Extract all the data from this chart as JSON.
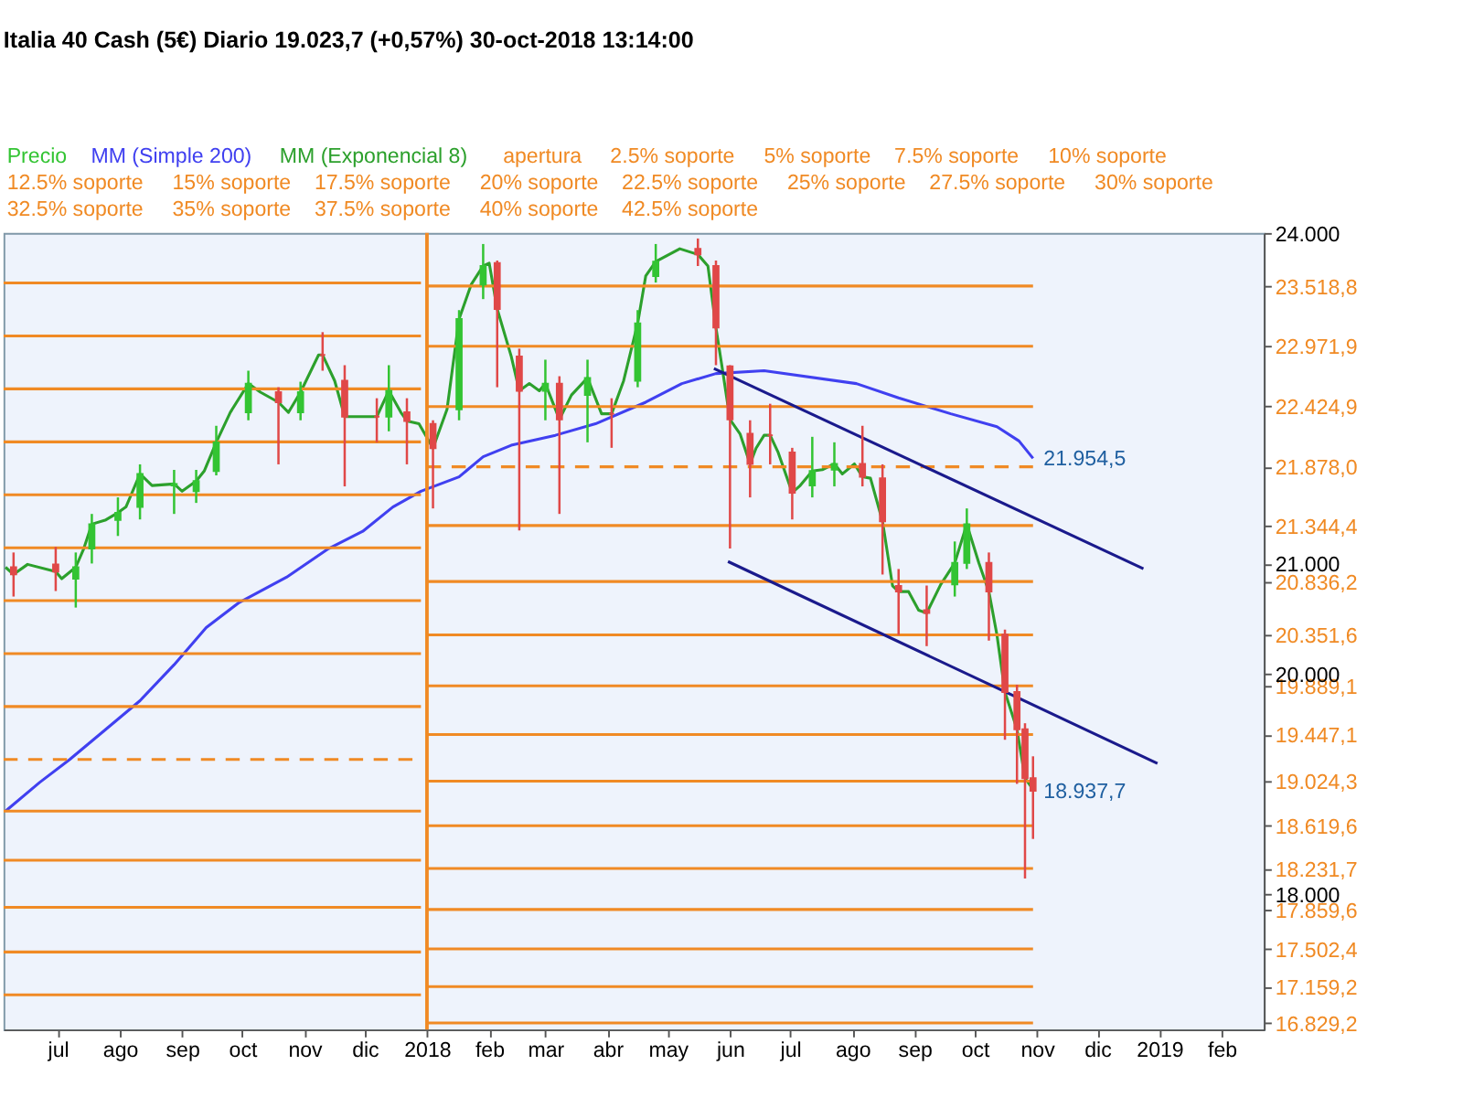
{
  "chart_data": {
    "type": "line",
    "title": "Italia 40 Cash (5€)   Diario   19.023,7 (+0,57%)   30-oct-2018 13:14:00",
    "x": [
      "2017-06-04",
      "2017-12-29",
      "2017-12-30",
      "2018-01-01",
      "2018-10-30"
    ],
    "xlim": [
      "2017-06-04",
      "2019-02-22"
    ],
    "xticks": [
      {
        "value": "2017-07-01",
        "label": "jul"
      },
      {
        "value": "2017-08-01",
        "label": "ago"
      },
      {
        "value": "2017-09-01",
        "label": "sep"
      },
      {
        "value": "2017-10-01",
        "label": "oct"
      },
      {
        "value": "2017-11-01",
        "label": "nov"
      },
      {
        "value": "2017-12-01",
        "label": "dic"
      },
      {
        "value": "2018-01-01",
        "label": "2018"
      },
      {
        "value": "2018-02-01",
        "label": "feb"
      },
      {
        "value": "2018-03-01",
        "label": "mar"
      },
      {
        "value": "2018-04-01",
        "label": "abr"
      },
      {
        "value": "2018-05-01",
        "label": "may"
      },
      {
        "value": "2018-06-01",
        "label": "jun"
      },
      {
        "value": "2018-07-01",
        "label": "jul"
      },
      {
        "value": "2018-08-01",
        "label": "ago"
      },
      {
        "value": "2018-09-01",
        "label": "sep"
      },
      {
        "value": "2018-10-01",
        "label": "oct"
      },
      {
        "value": "2018-11-01",
        "label": "nov"
      },
      {
        "value": "2018-12-01",
        "label": "dic"
      },
      {
        "value": "2019-01-01",
        "label": "2019"
      },
      {
        "value": "2019-02-01",
        "label": "feb"
      }
    ],
    "ylim": [
      16770,
      24000
    ],
    "yticks": [
      {
        "value": 24000,
        "label": "24.000"
      },
      {
        "value": 23518.8,
        "label": "23.518,8"
      },
      {
        "value": 22971.9,
        "label": "22.971,9"
      },
      {
        "value": 22424.9,
        "label": "22.424,9"
      },
      {
        "value": 21878,
        "label": "21.878,0"
      },
      {
        "value": 21344.4,
        "label": "21.344,4"
      },
      {
        "value": 21000,
        "label": "21.000"
      },
      {
        "value": 20836.2,
        "label": "20.836,2"
      },
      {
        "value": 20351.6,
        "label": "20.351,6"
      },
      {
        "value": 20000,
        "label": "20.000"
      },
      {
        "value": 19889.1,
        "label": "19.889,1"
      },
      {
        "value": 19447.1,
        "label": "19.447,1"
      },
      {
        "value": 19024.3,
        "label": "19.024,3"
      },
      {
        "value": 18619.6,
        "label": "18.619,6"
      },
      {
        "value": 18231.7,
        "label": "18.231,7"
      },
      {
        "value": 18000,
        "label": "18.000"
      },
      {
        "value": 17859.6,
        "label": "17.859,6"
      },
      {
        "value": 17502.4,
        "label": "17.502,4"
      },
      {
        "value": 17159.2,
        "label": "17.159,2"
      },
      {
        "value": 16829.2,
        "label": "16.829,2"
      }
    ],
    "legend": "top left",
    "ref_lines": [
      {
        "axis": "x",
        "value": "2018-01-01",
        "label": null,
        "color": "#f08a24"
      }
    ],
    "annotations": [
      {
        "text": "21.954,5",
        "x": "2018-10-30",
        "y": 21954.5
      },
      {
        "text": "18.937,7",
        "x": "2018-10-30",
        "y": 18937.7
      }
    ],
    "series": [
      {
        "name": "Precio",
        "type": "candlestick",
        "color": "#33c433",
        "x": [
          "2017-06-09",
          "2017-06-30",
          "2017-07-10",
          "2017-07-18",
          "2017-07-31",
          "2017-08-11",
          "2017-08-28",
          "2017-09-08",
          "2017-09-18",
          "2017-10-04",
          "2017-10-19",
          "2017-10-30",
          "2017-11-10",
          "2017-11-21",
          "2017-12-07",
          "2017-12-13",
          "2017-12-22",
          "2018-01-04",
          "2018-01-17",
          "2018-01-29",
          "2018-02-05",
          "2018-02-16",
          "2018-03-01",
          "2018-03-08",
          "2018-03-22",
          "2018-04-03",
          "2018-04-16",
          "2018-04-25",
          "2018-05-16",
          "2018-05-25",
          "2018-06-01",
          "2018-06-11",
          "2018-06-21",
          "2018-07-02",
          "2018-07-12",
          "2018-07-23",
          "2018-08-06",
          "2018-08-16",
          "2018-08-24",
          "2018-09-07",
          "2018-09-21",
          "2018-09-27",
          "2018-10-08",
          "2018-10-16",
          "2018-10-22",
          "2018-10-26",
          "2018-10-30"
        ],
        "ohlc": [
          [
            20966,
            21100,
            20700,
            20901
          ],
          [
            20992,
            21150,
            20750,
            20927
          ],
          [
            20862,
            21100,
            20600,
            20966
          ],
          [
            21136,
            21450,
            21000,
            21357
          ],
          [
            21396,
            21600,
            21250,
            21461
          ],
          [
            21513,
            21900,
            21400,
            21813
          ],
          [
            21708,
            21850,
            21450,
            21722
          ],
          [
            21656,
            21850,
            21550,
            21748
          ],
          [
            21839,
            22250,
            21800,
            22099
          ],
          [
            22372,
            22750,
            22300,
            22633
          ],
          [
            22555,
            22600,
            21900,
            22464
          ],
          [
            22372,
            22650,
            22300,
            22555
          ],
          [
            22893,
            23100,
            22750,
            22893
          ],
          [
            22659,
            22800,
            21700,
            22333
          ],
          [
            22333,
            22500,
            22100,
            22333
          ],
          [
            22333,
            22800,
            22200,
            22568
          ],
          [
            22372,
            22500,
            21900,
            22294
          ],
          [
            22268,
            22300,
            21500,
            22047
          ],
          [
            22399,
            23300,
            22300,
            23219
          ],
          [
            23531,
            23900,
            23400,
            23701
          ],
          [
            23727,
            23750,
            22600,
            23310
          ],
          [
            22880,
            22950,
            21300,
            22568
          ],
          [
            22568,
            22850,
            22300,
            22633
          ],
          [
            22633,
            22700,
            21450,
            22307
          ],
          [
            22529,
            22850,
            22100,
            22685
          ],
          [
            22359,
            22500,
            22050,
            22359
          ],
          [
            22659,
            23300,
            22600,
            23180
          ],
          [
            23609,
            23900,
            23550,
            23740
          ],
          [
            23857,
            23950,
            23700,
            23805
          ],
          [
            23701,
            23750,
            22800,
            23141
          ],
          [
            22789,
            22800,
            21136,
            22307
          ],
          [
            22177,
            22300,
            21600,
            21904
          ],
          [
            22164,
            22450,
            21900,
            22164
          ],
          [
            22008,
            22050,
            21400,
            21643
          ],
          [
            21708,
            22150,
            21600,
            21839
          ],
          [
            21852,
            22100,
            21700,
            21904
          ],
          [
            21904,
            22250,
            21700,
            21787
          ],
          [
            21774,
            21900,
            20900,
            21383
          ],
          [
            20797,
            20950,
            20350,
            20745
          ],
          [
            20576,
            20800,
            20250,
            20550
          ],
          [
            20810,
            21200,
            20700,
            21005
          ],
          [
            21005,
            21500,
            20950,
            21357
          ],
          [
            21005,
            21100,
            20300,
            20745
          ],
          [
            20354,
            20400,
            19400,
            19834
          ],
          [
            19834,
            19900,
            19000,
            19495
          ],
          [
            19495,
            19550,
            18141,
            19052
          ],
          [
            19052,
            19250,
            18500,
            18937.7
          ]
        ],
        "colors": [
          "#e04848",
          "#e04848",
          "#33c433",
          "#33c433",
          "#33c433",
          "#33c433",
          "#33c433",
          "#33c433",
          "#33c433",
          "#33c433",
          "#e04848",
          "#33c433",
          "#e04848",
          "#e04848",
          "#e04848",
          "#33c433",
          "#e04848",
          "#e04848",
          "#33c433",
          "#33c433",
          "#e04848",
          "#e04848",
          "#33c433",
          "#e04848",
          "#33c433",
          "#e04848",
          "#33c433",
          "#33c433",
          "#e04848",
          "#e04848",
          "#e04848",
          "#e04848",
          "#e04848",
          "#e04848",
          "#33c433",
          "#33c433",
          "#e04848",
          "#e04848",
          "#e04848",
          "#e04848",
          "#33c433",
          "#33c433",
          "#e04848",
          "#e04848",
          "#e04848",
          "#e04848",
          "#e04848"
        ]
      },
      {
        "name": "MM (Simple 200)",
        "color": "#4040f0",
        "x": [
          "2017-06-05",
          "2017-06-22",
          "2017-07-07",
          "2017-07-25",
          "2017-08-11",
          "2017-08-28",
          "2017-09-13",
          "2017-09-29",
          "2017-10-23",
          "2017-11-13",
          "2017-11-30",
          "2017-12-15",
          "2017-12-29",
          "2018-01-17",
          "2018-01-29",
          "2018-02-12",
          "2018-03-06",
          "2018-03-26",
          "2018-04-20",
          "2018-05-08",
          "2018-05-25",
          "2018-06-18",
          "2018-08-03",
          "2018-08-24",
          "2018-09-19",
          "2018-10-12",
          "2018-10-23",
          "2018-10-30"
        ],
        "values": [
          18753,
          19013,
          19222,
          19495,
          19755,
          20081,
          20419,
          20641,
          20875,
          21136,
          21292,
          21513,
          21656,
          21787,
          21969,
          22073,
          22164,
          22268,
          22464,
          22633,
          22724,
          22750,
          22633,
          22503,
          22359,
          22242,
          22112,
          21954.5
        ]
      },
      {
        "name": "MM (Exponencial 8)",
        "color": "#2ca02c",
        "x": [
          "2017-06-05",
          "2017-06-09",
          "2017-06-16",
          "2017-06-30",
          "2017-07-03",
          "2017-07-10",
          "2017-07-14",
          "2017-07-18",
          "2017-07-25",
          "2017-07-31",
          "2017-08-04",
          "2017-08-11",
          "2017-08-17",
          "2017-08-28",
          "2017-09-01",
          "2017-09-08",
          "2017-09-12",
          "2017-09-18",
          "2017-09-25",
          "2017-10-04",
          "2017-10-10",
          "2017-10-19",
          "2017-10-24",
          "2017-10-30",
          "2017-11-08",
          "2017-11-10",
          "2017-11-16",
          "2017-11-21",
          "2017-12-04",
          "2017-12-07",
          "2017-12-13",
          "2017-12-19",
          "2017-12-22",
          "2017-12-28",
          "2018-01-04",
          "2018-01-11",
          "2018-01-17",
          "2018-01-23",
          "2018-01-29",
          "2018-02-01",
          "2018-02-05",
          "2018-02-12",
          "2018-02-16",
          "2018-02-21",
          "2018-02-26",
          "2018-03-01",
          "2018-03-08",
          "2018-03-14",
          "2018-03-22",
          "2018-03-29",
          "2018-04-03",
          "2018-04-09",
          "2018-04-16",
          "2018-04-20",
          "2018-04-25",
          "2018-05-07",
          "2018-05-16",
          "2018-05-21",
          "2018-05-25",
          "2018-05-28",
          "2018-06-01",
          "2018-06-06",
          "2018-06-11",
          "2018-06-14",
          "2018-06-18",
          "2018-06-21",
          "2018-06-25",
          "2018-07-02",
          "2018-07-06",
          "2018-07-12",
          "2018-07-17",
          "2018-07-23",
          "2018-07-27",
          "2018-08-02",
          "2018-08-06",
          "2018-08-10",
          "2018-08-16",
          "2018-08-21",
          "2018-08-24",
          "2018-08-29",
          "2018-09-03",
          "2018-09-07",
          "2018-09-14",
          "2018-09-21",
          "2018-09-27",
          "2018-10-03",
          "2018-10-08",
          "2018-10-12",
          "2018-10-16",
          "2018-10-22",
          "2018-10-26",
          "2018-10-30"
        ],
        "values": [
          20966,
          20901,
          20992,
          20927,
          20862,
          20966,
          21136,
          21357,
          21396,
          21461,
          21513,
          21813,
          21708,
          21722,
          21656,
          21748,
          21839,
          22099,
          22372,
          22633,
          22555,
          22464,
          22372,
          22555,
          22893,
          22893,
          22659,
          22333,
          22333,
          22333,
          22568,
          22372,
          22294,
          22268,
          22047,
          22399,
          23219,
          23531,
          23701,
          23727,
          23310,
          22880,
          22568,
          22633,
          22568,
          22633,
          22307,
          22529,
          22685,
          22359,
          22359,
          22659,
          23180,
          23609,
          23740,
          23857,
          23805,
          23701,
          23141,
          22789,
          22307,
          22177,
          21904,
          22047,
          22164,
          22164,
          22008,
          21643,
          21708,
          21839,
          21852,
          21904,
          21813,
          21904,
          21787,
          21774,
          21383,
          20797,
          20745,
          20745,
          20576,
          20550,
          20810,
          21005,
          21357,
          21005,
          20745,
          20354,
          19834,
          19495,
          19052,
          18948
        ]
      },
      {
        "name": "apertura",
        "color": "#f08a24",
        "line_style": "dashed",
        "values": [
          19221,
          19221,
          null,
          21878,
          21878
        ]
      },
      {
        "name": "2.5% soporte",
        "color": "#f08a24",
        "values": [
          18752,
          18752,
          null,
          21344.4,
          21344.4
        ]
      },
      {
        "name": "5% soporte",
        "color": "#f08a24",
        "values": [
          18306,
          18306,
          null,
          20836.2,
          20836.2
        ]
      },
      {
        "name": "7.5% soporte",
        "color": "#f08a24",
        "values": [
          17880,
          17880,
          null,
          20351.6,
          20351.6
        ]
      },
      {
        "name": "10% soporte",
        "color": "#f08a24",
        "values": [
          17474,
          17474,
          null,
          19889.1,
          19889.1
        ]
      },
      {
        "name": "12.5% soporte",
        "color": "#f08a24",
        "values": [
          17085,
          17085,
          null,
          19447.1,
          19447.1
        ]
      },
      {
        "name": "15% soporte",
        "color": "#f08a24",
        "values": [
          null,
          null,
          null,
          19024.3,
          19024.3
        ]
      },
      {
        "name": "17.5% soporte",
        "color": "#f08a24",
        "values": [
          null,
          null,
          null,
          18619.6,
          18619.6
        ]
      },
      {
        "name": "20% soporte",
        "color": "#f08a24",
        "values": [
          null,
          null,
          null,
          18231.7,
          18231.7
        ]
      },
      {
        "name": "22.5% soporte",
        "color": "#f08a24",
        "values": [
          null,
          null,
          null,
          17859.6,
          17859.6
        ]
      },
      {
        "name": "25% soporte",
        "color": "#f08a24",
        "values": [
          null,
          null,
          null,
          17502.4,
          17502.4
        ]
      },
      {
        "name": "27.5% soporte",
        "color": "#f08a24",
        "values": [
          null,
          null,
          null,
          17159.2,
          17159.2
        ]
      },
      {
        "name": "30% soporte",
        "color": "#f08a24",
        "values": [
          null,
          null,
          null,
          16829.2,
          16829.2
        ]
      },
      {
        "name": "32.5% soporte",
        "color": "#f08a24",
        "values": [
          null,
          null,
          null,
          null,
          null
        ]
      },
      {
        "name": "35% soporte",
        "color": "#f08a24",
        "values": [
          null,
          null,
          null,
          null,
          null
        ]
      },
      {
        "name": "37.5% soporte",
        "color": "#f08a24",
        "values": [
          null,
          null,
          null,
          null,
          null
        ]
      },
      {
        "name": "40% soporte",
        "color": "#f08a24",
        "values": [
          null,
          null,
          null,
          null,
          null
        ]
      },
      {
        "name": "42.5% soporte",
        "color": "#f08a24",
        "values": [
          null,
          null,
          null,
          null,
          null
        ]
      },
      {
        "color": "#f08a24",
        "values": [
          19702,
          19702,
          null,
          22424.9,
          22424.9
        ]
      },
      {
        "color": "#f08a24",
        "values": [
          20182,
          20182,
          null,
          22971.9,
          22971.9
        ]
      },
      {
        "color": "#f08a24",
        "values": [
          20663,
          20663,
          null,
          23518.8,
          23518.8
        ]
      },
      {
        "color": "#f08a24",
        "values": [
          21143,
          21143,
          null,
          null,
          null
        ]
      },
      {
        "color": "#f08a24",
        "values": [
          21624,
          21624,
          null,
          null,
          null
        ]
      },
      {
        "color": "#f08a24",
        "values": [
          22104,
          22104,
          null,
          null,
          null
        ]
      },
      {
        "color": "#f08a24",
        "values": [
          22585,
          22585,
          null,
          null,
          null
        ]
      },
      {
        "color": "#f08a24",
        "values": [
          23065,
          23065,
          null,
          null,
          null
        ]
      },
      {
        "color": "#f08a24",
        "values": [
          23546,
          23546,
          null,
          null,
          null
        ]
      },
      {
        "color": "#1a1a8c",
        "x": [
          "2018-05-24",
          "2018-12-24"
        ],
        "values": [
          22770,
          20952
        ]
      },
      {
        "color": "#1a1a8c",
        "x": [
          "2018-05-31",
          "2018-12-31"
        ],
        "values": [
          21018,
          19186
        ]
      }
    ]
  }
}
